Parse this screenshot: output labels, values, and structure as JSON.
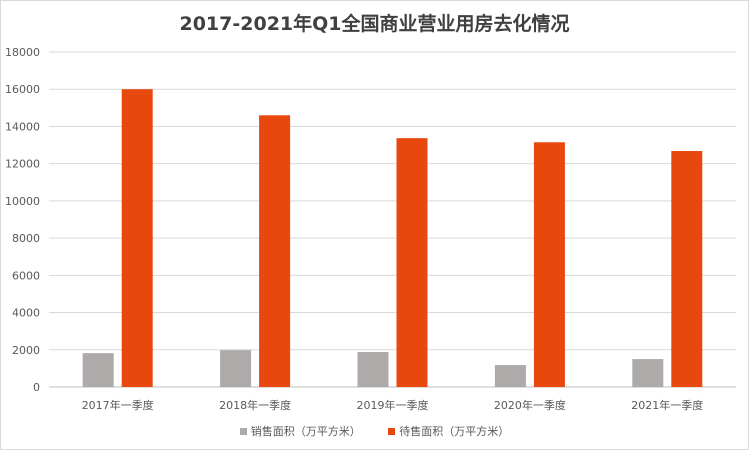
{
  "chart_data": {
    "type": "bar",
    "title": "2017-2021年Q1全国商业营业用房去化情况",
    "categories": [
      "2017年一季度",
      "2018年一季度",
      "2019年一季度",
      "2020年一季度",
      "2021年一季度"
    ],
    "series": [
      {
        "name": "销售面积（万平方米）",
        "color": "#aeaaaa",
        "values": [
          1820,
          1980,
          1880,
          1180,
          1500
        ]
      },
      {
        "name": "待售面积（万平方米）",
        "color": "#e8470e",
        "values": [
          16000,
          14600,
          13370,
          13150,
          12680
        ]
      }
    ],
    "ylim": [
      0,
      18000
    ],
    "yticks": [
      0,
      2000,
      4000,
      6000,
      8000,
      10000,
      12000,
      14000,
      16000,
      18000
    ],
    "grid": true,
    "legend": "bottom"
  }
}
